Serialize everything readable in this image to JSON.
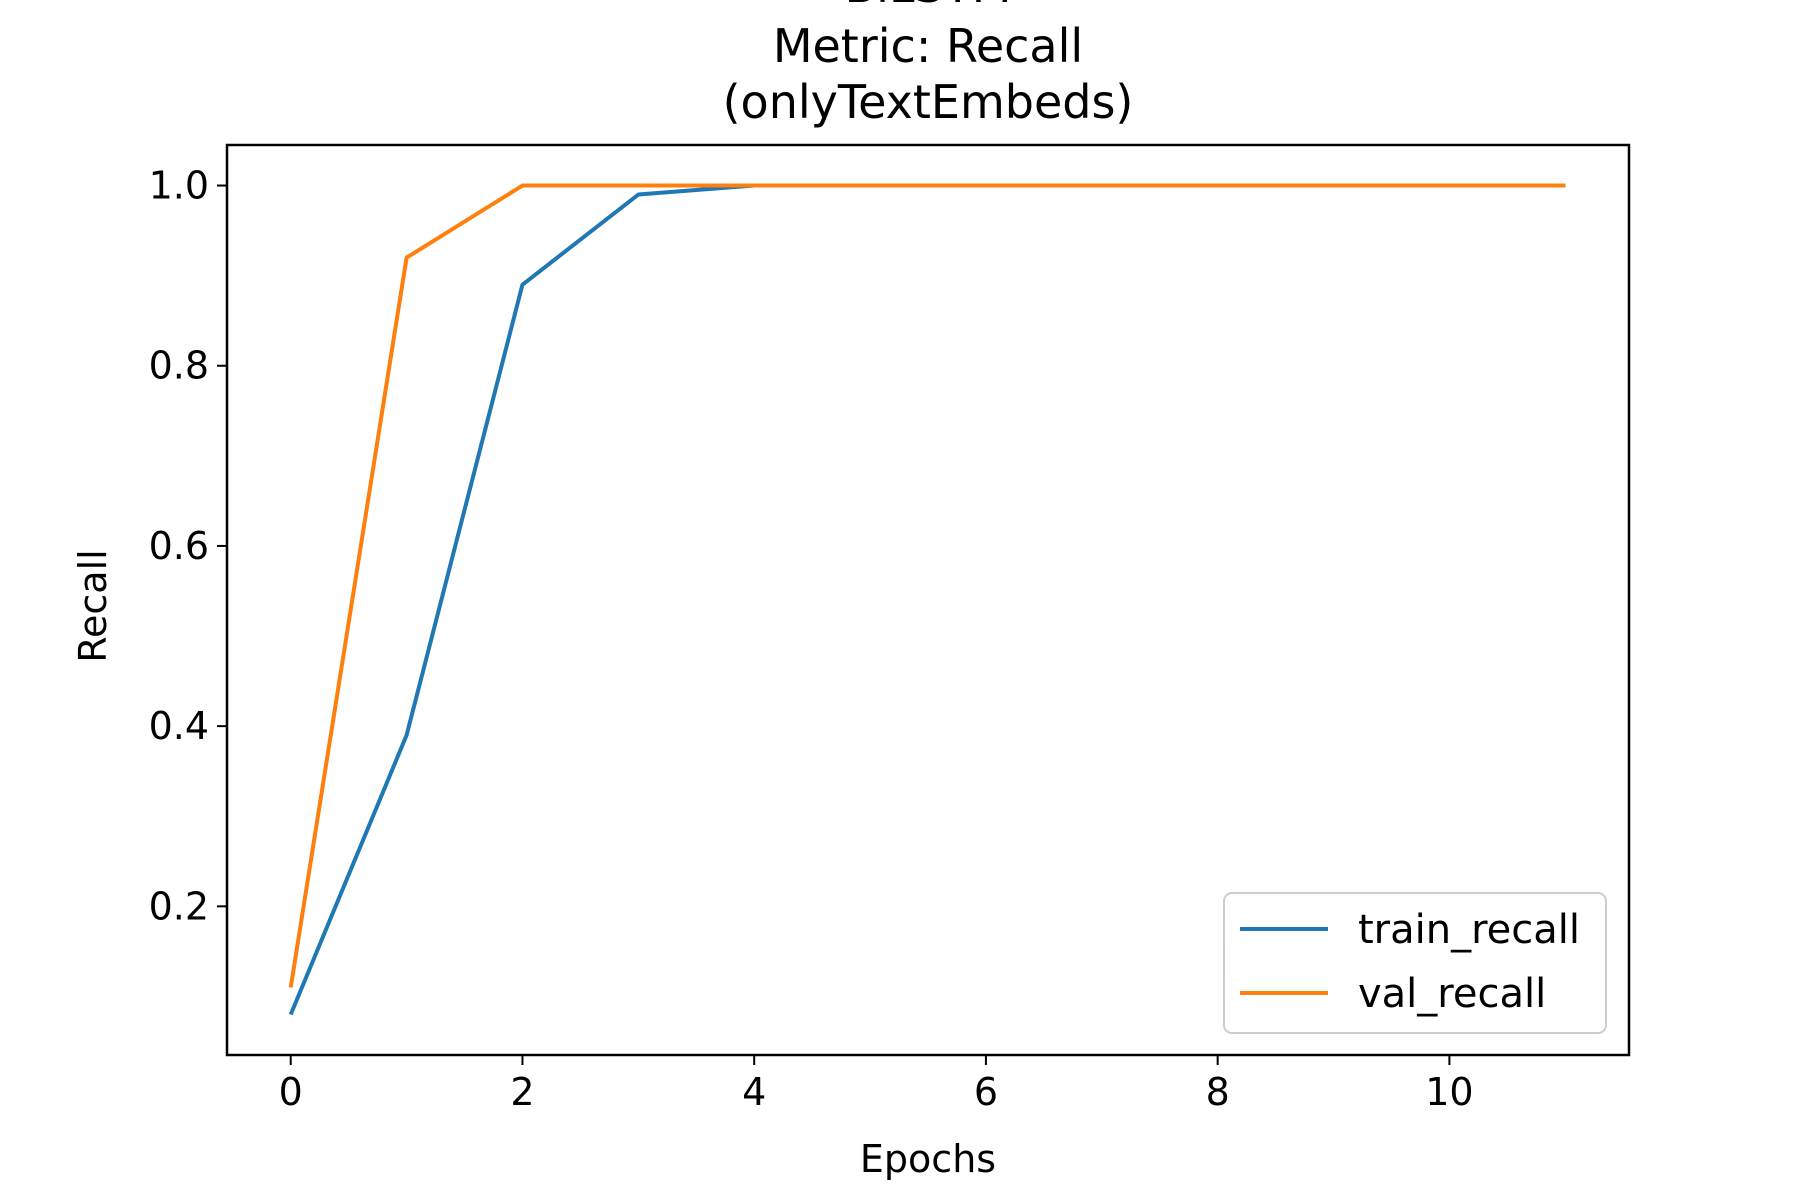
{
  "chart_data": {
    "type": "line",
    "title_lines": [
      "BiLSTM",
      "Metric: Recall",
      "(onlyTextEmbeds)"
    ],
    "xlabel": "Epochs",
    "ylabel": "Recall",
    "xlim": [
      -0.55,
      11.55
    ],
    "ylim": [
      0.035,
      1.045
    ],
    "xticks": [
      0,
      2,
      4,
      6,
      8,
      10
    ],
    "xtick_labels": [
      "0",
      "2",
      "4",
      "6",
      "8",
      "10"
    ],
    "yticks": [
      0.2,
      0.4,
      0.6,
      0.8,
      1.0
    ],
    "ytick_labels": [
      "0.2",
      "0.4",
      "0.6",
      "0.8",
      "1.0"
    ],
    "grid": false,
    "legend_position": "lower-right",
    "x": [
      0,
      1,
      2,
      3,
      4,
      5,
      6,
      7,
      8,
      9,
      10,
      11
    ],
    "series": [
      {
        "name": "train_recall",
        "color": "#1f77b4",
        "values": [
          0.08,
          0.39,
          0.89,
          0.99,
          1.0,
          1.0,
          1.0,
          1.0,
          1.0,
          1.0,
          1.0,
          1.0
        ]
      },
      {
        "name": "val_recall",
        "color": "#ff7f0e",
        "values": [
          0.11,
          0.92,
          1.0,
          1.0,
          1.0,
          1.0,
          1.0,
          1.0,
          1.0,
          1.0,
          1.0,
          1.0
        ]
      }
    ]
  }
}
